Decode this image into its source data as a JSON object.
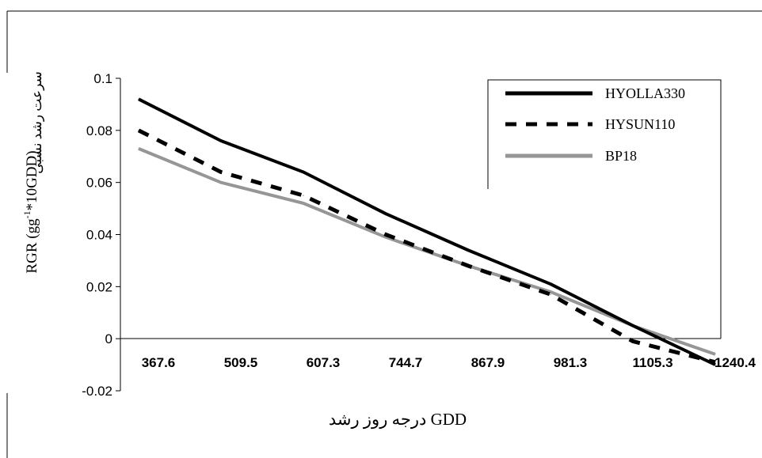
{
  "chart_data": {
    "type": "line",
    "categories": [
      "367.6",
      "509.5",
      "607.3",
      "744.7",
      "867.9",
      "981.3",
      "1105.3",
      "1240.4"
    ],
    "x": [
      367.6,
      509.5,
      607.3,
      744.7,
      867.9,
      981.3,
      1105.3,
      1240.4
    ],
    "series": [
      {
        "name": "HYOLLA330",
        "color": "#000000",
        "dash": "solid",
        "values": [
          0.092,
          0.076,
          0.064,
          0.048,
          0.034,
          0.021,
          0.005,
          -0.01
        ]
      },
      {
        "name": "HYSUN110",
        "color": "#000000",
        "dash": "dashed",
        "values": [
          0.08,
          0.064,
          0.055,
          0.04,
          0.028,
          0.017,
          -0.001,
          -0.009
        ]
      },
      {
        "name": "BP18",
        "color": "#969696",
        "dash": "solid",
        "values": [
          0.073,
          0.06,
          0.052,
          0.039,
          0.028,
          0.018,
          0.005,
          -0.006
        ]
      }
    ],
    "ylim": [
      -0.02,
      0.1
    ],
    "yticks": [
      "0.1",
      "0.08",
      "0.06",
      "0.04",
      "0.02",
      "0",
      "-0.02"
    ],
    "ytick_values": [
      0.1,
      0.08,
      0.06,
      0.04,
      0.02,
      0,
      -0.02
    ],
    "ylabel_main": "RGR (gg",
    "ylabel_sup": "-1",
    "ylabel_tail": "*10GDD)",
    "ylabel_persian": "سرعت رشد نسبی",
    "xlabel": "درجه روز رشد  GDD",
    "legend_position": "top-right",
    "grid": false
  }
}
